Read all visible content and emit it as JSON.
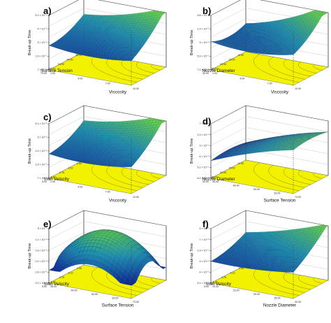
{
  "chart_data": [
    {
      "panel": "a)",
      "type": "surface",
      "zlabel": "Break-up Time",
      "z_ticks": [
        "7 × 10⁻⁶",
        "1.9 × 10⁻⁵",
        "3 × 10⁻⁵",
        "4 × 10⁻⁵",
        "5.1 × 10⁻⁵"
      ],
      "xlabel": "Surface Tension",
      "x_ticks": [
        "73.00",
        "63.00",
        "54.00",
        "44.00",
        "35.00"
      ],
      "ylabel": "Viscosity",
      "y_ticks": [
        "1.00",
        "4.00",
        "7.00",
        "10.00"
      ],
      "surface": {
        "low": 0.15,
        "front": 0.15,
        "right": 0.45,
        "back": 0.95,
        "curvature": 0.08
      }
    },
    {
      "panel": "b)",
      "type": "surface",
      "zlabel": "Break-up Time",
      "z_ticks": [
        "7.2 × 10⁻⁶",
        "5.9 × 10⁻⁵",
        "3 × 10⁻⁵",
        "1.9 × 10⁻⁵",
        "4.8 × 10⁻⁶"
      ],
      "xlabel": "Nozzle Diameter",
      "x_ticks": [
        "30.00",
        "25.00",
        "20.00",
        "15.00",
        "10.00"
      ],
      "ylabel": "Viscosity",
      "y_ticks": [
        "1.00",
        "4.00",
        "7.00",
        "10.00"
      ],
      "surface": {
        "low": 0.2,
        "front": 0.25,
        "right": 0.2,
        "back": 0.98,
        "curvature": 0.1
      }
    },
    {
      "panel": "c)",
      "type": "surface",
      "zlabel": "Break-up Time",
      "z_ticks": [
        "7 × 10⁻⁶",
        "1.9 × 10⁻⁵",
        "2.4 × 10⁻⁵",
        "3 × 10⁻⁵",
        "5.1 × 10⁻⁵"
      ],
      "xlabel": "Inlet Velocity",
      "x_ticks": [
        "5.00",
        "4.38",
        "3.75",
        "3.13",
        "2.50"
      ],
      "ylabel": "Viscosity",
      "y_ticks": [
        "1.00",
        "4.00",
        "7.00",
        "10.00"
      ],
      "surface": {
        "low": 0.15,
        "front": 0.2,
        "right": 0.5,
        "back": 0.98,
        "curvature": 0.08
      }
    },
    {
      "panel": "d)",
      "type": "surface",
      "zlabel": "Break-up Time",
      "z_ticks": [
        "6.2 × 10⁻⁶",
        "5.1 × 10⁻⁵",
        "4 × 10⁻⁵",
        "3 × 10⁻⁵",
        "1.9 × 10⁻⁵",
        "7 × 10⁻⁶"
      ],
      "xlabel": "Nozzle Diameter",
      "x_ticks": [
        "30.00",
        "25.00",
        "20.00",
        "15.00",
        "10.00"
      ],
      "ylabel": "Surface Tension",
      "y_ticks": [
        "35.00",
        "44.00",
        "54.00",
        "63.00",
        "73.00"
      ],
      "surface": {
        "low": 0.25,
        "front": 0.85,
        "right": 0.25,
        "back": 0.85,
        "curvature": -0.05
      }
    },
    {
      "panel": "e)",
      "type": "surface",
      "zlabel": "Break-up Time",
      "z_ticks": [
        "3.3 × 10⁻⁶",
        "2.8 × 10⁻⁶",
        "2.2 × 10⁻⁶",
        "1.6 × 10⁻⁶",
        "1.1 × 10⁻⁶",
        "5 × 10⁻⁷"
      ],
      "xlabel": "Inlet Velocity",
      "x_ticks": [
        "5.00",
        "4.38",
        "3.75",
        "3.13",
        "2.50"
      ],
      "ylabel": "Surface Tension",
      "y_ticks": [
        "35.00",
        "44.00",
        "54.00",
        "63.00",
        "73.00"
      ],
      "surface": {
        "low": 0.9,
        "front": 0.9,
        "right": 0.9,
        "back": 0.95,
        "curvature": -0.55
      }
    },
    {
      "panel": "f)",
      "type": "surface",
      "zlabel": "Break-up Time",
      "z_ticks": [
        "5.1 × 10⁻⁵",
        "4 × 10⁻⁵",
        "3 × 10⁻⁵",
        "1.9 × 10⁻⁵",
        "7 × 10⁻⁶",
        "5 × 10⁻⁶"
      ],
      "xlabel": "Inlet Velocity",
      "x_ticks": [
        "5.00",
        "4.38",
        "3.75",
        "3.13",
        "2.50"
      ],
      "ylabel": "Nozzle Diameter",
      "y_ticks": [
        "10.00",
        "15.00",
        "20.00",
        "25.00",
        "30.00"
      ],
      "surface": {
        "low": 0.15,
        "front": 0.25,
        "right": 0.4,
        "back": 0.95,
        "curvature": 0.05
      }
    }
  ],
  "colors": {
    "floor": "#f2f200",
    "low": "#0a1e96",
    "mid": "#1d8fb0",
    "high": "#63d24a",
    "edge": "#444444"
  }
}
